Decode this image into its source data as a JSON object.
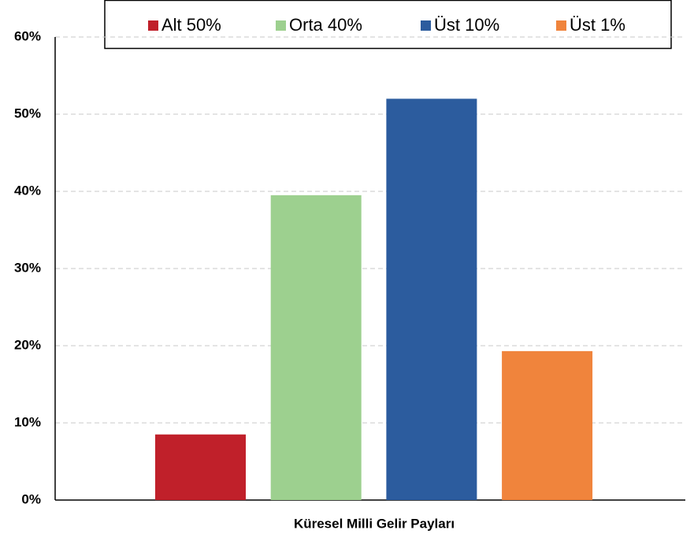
{
  "chart_data": {
    "type": "bar",
    "categories": [
      "Küresel Milli Gelir Payları"
    ],
    "series": [
      {
        "name": "Alt 50%",
        "color": "#c0202a",
        "values": [
          8.5
        ]
      },
      {
        "name": "Orta 40%",
        "color": "#9dd08f",
        "values": [
          39.5
        ]
      },
      {
        "name": "Üst 10%",
        "color": "#2c5c9e",
        "values": [
          52
        ]
      },
      {
        "name": "Üst 1%",
        "color": "#f0843c",
        "values": [
          19.3
        ]
      }
    ],
    "ylim": [
      0,
      60
    ],
    "yticks": [
      {
        "value": 0,
        "label": "0%"
      },
      {
        "value": 10,
        "label": "10%"
      },
      {
        "value": 20,
        "label": "20%"
      },
      {
        "value": 30,
        "label": "30%"
      },
      {
        "value": 40,
        "label": "40%"
      },
      {
        "value": 50,
        "label": "50%"
      },
      {
        "value": 60,
        "label": "60%"
      }
    ],
    "grid": true,
    "legend": "top"
  }
}
